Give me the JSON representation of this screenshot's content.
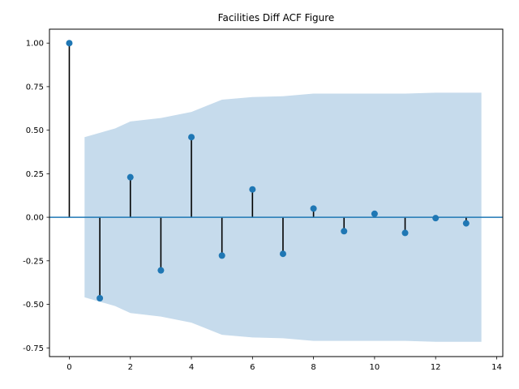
{
  "chart_data": {
    "type": "stem",
    "title": "Facilities Diff ACF Figure",
    "xlabel": "",
    "ylabel": "",
    "xlim": [
      -0.65,
      14.2
    ],
    "ylim": [
      -0.8,
      1.08
    ],
    "xticks": [
      0,
      2,
      4,
      6,
      8,
      10,
      12,
      14
    ],
    "xtick_labels": [
      "0",
      "2",
      "4",
      "6",
      "8",
      "10",
      "12",
      "14"
    ],
    "yticks": [
      1.0,
      0.75,
      0.5,
      0.25,
      0.0,
      -0.25,
      -0.5,
      -0.75
    ],
    "ytick_labels": [
      "1.00",
      "0.75",
      "0.50",
      "0.25",
      "0.00",
      "-0.25",
      "-0.50",
      "-0.75"
    ],
    "grid": false,
    "lags": [
      0,
      1,
      2,
      3,
      4,
      5,
      6,
      7,
      8,
      9,
      10,
      11,
      12,
      13
    ],
    "values": [
      1.0,
      -0.465,
      0.23,
      -0.305,
      0.46,
      -0.22,
      0.16,
      -0.21,
      0.05,
      -0.08,
      0.02,
      -0.09,
      -0.005,
      -0.035
    ],
    "confidence_band": {
      "x": [
        0.5,
        1.5,
        2,
        3,
        4,
        5,
        6,
        7,
        8,
        9,
        10,
        11,
        12,
        13,
        13.5
      ],
      "upper": [
        0.46,
        0.51,
        0.55,
        0.57,
        0.605,
        0.675,
        0.69,
        0.695,
        0.71,
        0.71,
        0.71,
        0.71,
        0.715,
        0.715,
        0.715
      ]
    },
    "colors": {
      "marker": "#1f77b4",
      "stem": "#000000",
      "zero_line": "#1f77b4",
      "band": "#c6dbec"
    }
  }
}
